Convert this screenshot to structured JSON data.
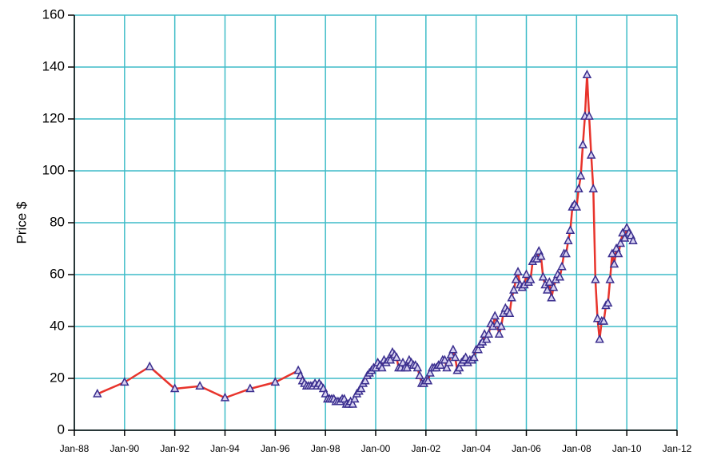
{
  "chart_data": {
    "type": "line",
    "y_label": "Price $",
    "xlim": [
      "1988-01",
      "2012-01"
    ],
    "xticks": [
      {
        "value": "1988-01",
        "label": "Jan-88"
      },
      {
        "value": "1990-01",
        "label": "Jan-90"
      },
      {
        "value": "1992-01",
        "label": "Jan-92"
      },
      {
        "value": "1994-01",
        "label": "Jan-94"
      },
      {
        "value": "1996-01",
        "label": "Jan-96"
      },
      {
        "value": "1998-01",
        "label": "Jan-98"
      },
      {
        "value": "2000-01",
        "label": "Jan-00"
      },
      {
        "value": "2002-01",
        "label": "Jan-02"
      },
      {
        "value": "2004-01",
        "label": "Jan-04"
      },
      {
        "value": "2006-01",
        "label": "Jan-06"
      },
      {
        "value": "2008-01",
        "label": "Jan-08"
      },
      {
        "value": "2010-01",
        "label": "Jan-10"
      },
      {
        "value": "2012-01",
        "label": "Jan-12"
      }
    ],
    "ylim": [
      0,
      160
    ],
    "yticks": [
      0,
      20,
      40,
      60,
      80,
      100,
      120,
      140,
      160
    ],
    "grid": true,
    "series": [
      {
        "color": "#e8342c",
        "marker_color": "#3b2f8f",
        "x": [
          "1988-12",
          "1990-01",
          "1991-01",
          "1992-01",
          "1993-01",
          "1994-01",
          "1995-01",
          "1996-01",
          "1996-12",
          "1997-01",
          "1997-02",
          "1997-03",
          "1997-04",
          "1997-05",
          "1997-06",
          "1997-07",
          "1997-08",
          "1997-09",
          "1997-10",
          "1997-11",
          "1997-12",
          "1998-01",
          "1998-02",
          "1998-03",
          "1998-04",
          "1998-05",
          "1998-06",
          "1998-07",
          "1998-08",
          "1998-09",
          "1998-10",
          "1998-11",
          "1998-12",
          "1999-01",
          "1999-02",
          "1999-03",
          "1999-04",
          "1999-05",
          "1999-06",
          "1999-07",
          "1999-08",
          "1999-09",
          "1999-10",
          "1999-11",
          "1999-12",
          "2000-01",
          "2000-02",
          "2000-03",
          "2000-04",
          "2000-05",
          "2000-06",
          "2000-07",
          "2000-08",
          "2000-09",
          "2000-10",
          "2000-11",
          "2000-12",
          "2001-01",
          "2001-02",
          "2001-03",
          "2001-04",
          "2001-05",
          "2001-06",
          "2001-07",
          "2001-08",
          "2001-09",
          "2001-10",
          "2001-11",
          "2001-12",
          "2002-01",
          "2002-02",
          "2002-03",
          "2002-04",
          "2002-05",
          "2002-06",
          "2002-07",
          "2002-08",
          "2002-09",
          "2002-10",
          "2002-11",
          "2002-12",
          "2003-01",
          "2003-02",
          "2003-03",
          "2003-04",
          "2003-05",
          "2003-06",
          "2003-07",
          "2003-08",
          "2003-09",
          "2003-10",
          "2003-11",
          "2003-12",
          "2004-01",
          "2004-02",
          "2004-03",
          "2004-04",
          "2004-05",
          "2004-06",
          "2004-07",
          "2004-08",
          "2004-09",
          "2004-10",
          "2004-11",
          "2004-12",
          "2005-01",
          "2005-02",
          "2005-03",
          "2005-04",
          "2005-05",
          "2005-06",
          "2005-07",
          "2005-08",
          "2005-09",
          "2005-10",
          "2005-11",
          "2005-12",
          "2006-01",
          "2006-02",
          "2006-03",
          "2006-04",
          "2006-05",
          "2006-06",
          "2006-07",
          "2006-08",
          "2006-09",
          "2006-10",
          "2006-11",
          "2006-12",
          "2007-01",
          "2007-02",
          "2007-03",
          "2007-04",
          "2007-05",
          "2007-06",
          "2007-07",
          "2007-08",
          "2007-09",
          "2007-10",
          "2007-11",
          "2007-12",
          "2008-01",
          "2008-02",
          "2008-03",
          "2008-04",
          "2008-05",
          "2008-06",
          "2008-07",
          "2008-08",
          "2008-09",
          "2008-10",
          "2008-11",
          "2008-12",
          "2009-01",
          "2009-02",
          "2009-03",
          "2009-04",
          "2009-05",
          "2009-06",
          "2009-07",
          "2009-08",
          "2009-09",
          "2009-10",
          "2009-11",
          "2009-12",
          "2010-01",
          "2010-02",
          "2010-03",
          "2010-04"
        ],
        "values": [
          14,
          18.5,
          24.5,
          16,
          17,
          12.5,
          16,
          18.5,
          23,
          21,
          19,
          18,
          17,
          17,
          17,
          17,
          18,
          17,
          18,
          17,
          16,
          14,
          12,
          12,
          12,
          12,
          11,
          11,
          11,
          12,
          12,
          10,
          10,
          11,
          10,
          12,
          14,
          15,
          16,
          18,
          19,
          21,
          22,
          23,
          24,
          24,
          26,
          25,
          24,
          27,
          26,
          27,
          27,
          30,
          29,
          28,
          24,
          24,
          26,
          24,
          24,
          27,
          26,
          25,
          25,
          24,
          21,
          18,
          18,
          19,
          19,
          22,
          24,
          24,
          24,
          25,
          25,
          27,
          27,
          24,
          26,
          29,
          31,
          28,
          23,
          24,
          26,
          27,
          28,
          26,
          27,
          27,
          28,
          31,
          31,
          33,
          34,
          37,
          35,
          37,
          41,
          40,
          44,
          41,
          37,
          40,
          45,
          47,
          46,
          45,
          51,
          54,
          58,
          61,
          56,
          55,
          56,
          60,
          57,
          58,
          65,
          66,
          66,
          69,
          67,
          59,
          56,
          54,
          57,
          51,
          55,
          58,
          60,
          59,
          63,
          68,
          68,
          73,
          77,
          86,
          87,
          86,
          93,
          98,
          110,
          121,
          137,
          121,
          106,
          93,
          58,
          43,
          35,
          42,
          42,
          48,
          49,
          58,
          68,
          64,
          70,
          68,
          72,
          76,
          74,
          78,
          76,
          75,
          73
        ]
      }
    ]
  }
}
